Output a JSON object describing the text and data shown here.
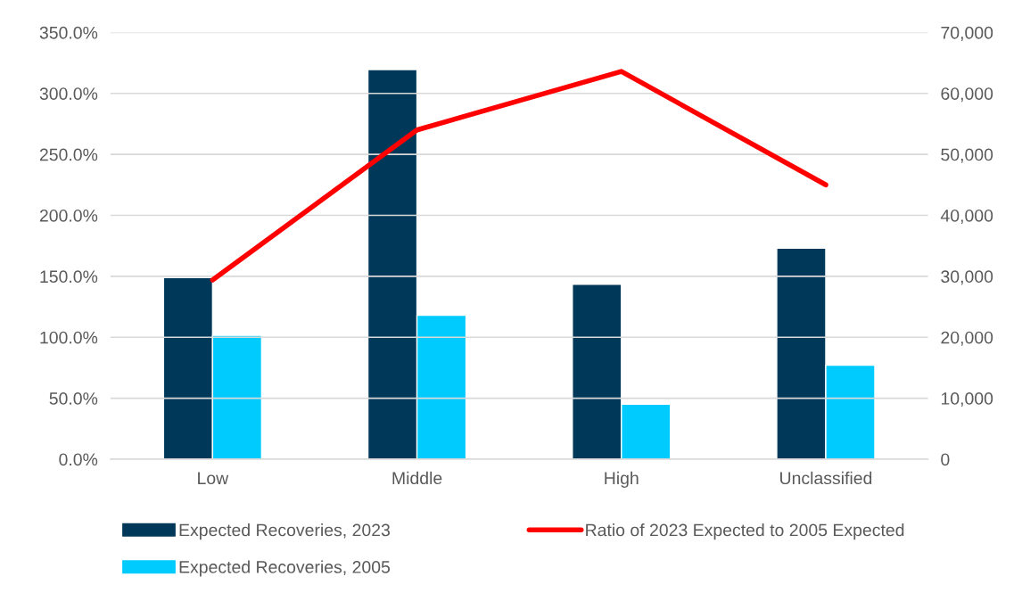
{
  "chart_data": {
    "type": "bar",
    "categories": [
      "Low",
      "Middle",
      "High",
      "Unclassified"
    ],
    "series": [
      {
        "name": "Expected Recoveries, 2023",
        "color": "#003859",
        "axis": "y2",
        "values": [
          29800,
          63900,
          28700,
          34600
        ]
      },
      {
        "name": "Expected Recoveries, 2005",
        "color": "#00cbff",
        "axis": "y2",
        "values": [
          20300,
          23600,
          9000,
          15400
        ]
      },
      {
        "name": "Ratio of 2023 Expected to 2005 Expected",
        "type": "line",
        "color": "#ff0000",
        "values": [
          147,
          270,
          318,
          225
        ]
      }
    ],
    "ylim": [
      0,
      350
    ],
    "yticks": [
      {
        "value": 0,
        "label": "0.0%"
      },
      {
        "value": 50,
        "label": "50.0%"
      },
      {
        "value": 100,
        "label": "100.0%"
      },
      {
        "value": 150,
        "label": "150.0%"
      },
      {
        "value": 200,
        "label": "200.0%"
      },
      {
        "value": 250,
        "label": "250.0%"
      },
      {
        "value": 300,
        "label": "300.0%"
      },
      {
        "value": 350,
        "label": "350.0%"
      }
    ],
    "y2lim": [
      0,
      70000
    ],
    "y2ticks": [
      0,
      {
        "value": 10000,
        "label": "10,000"
      },
      {
        "value": 20000,
        "label": "20,000"
      },
      {
        "value": 30000,
        "label": "30,000"
      },
      {
        "value": 40000,
        "label": "40,000"
      },
      {
        "value": 50000,
        "label": "50,000"
      },
      {
        "value": 60000,
        "label": "60,000"
      },
      {
        "value": 70000,
        "label": "70,000"
      }
    ],
    "grid": "y",
    "legend": "bottom",
    "line_style": "solid",
    "marker": "none"
  }
}
